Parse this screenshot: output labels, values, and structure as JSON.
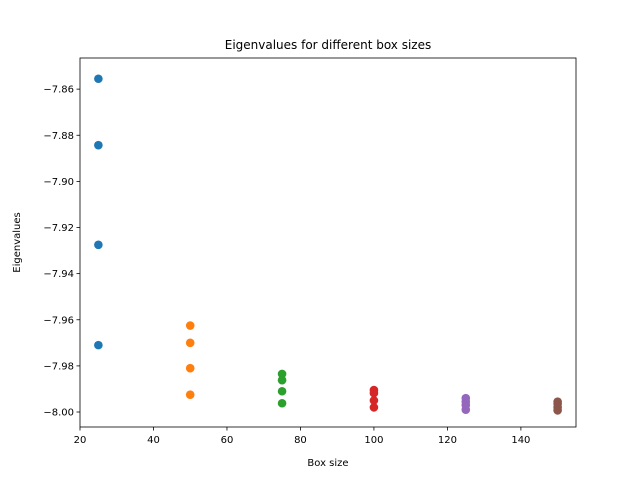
{
  "chart_data": {
    "type": "scatter",
    "title": "Eigenvalues for different box sizes",
    "xlabel": "Box size",
    "ylabel": "Eigenvalues",
    "xlim": [
      20,
      155
    ],
    "ylim": [
      -8.0065,
      -7.8465
    ],
    "xticks": [
      20,
      40,
      60,
      80,
      100,
      120,
      140
    ],
    "yticks": [
      -8.0,
      -7.98,
      -7.96,
      -7.94,
      -7.92,
      -7.9,
      -7.88,
      -7.86
    ],
    "ytick_labels": [
      "−8.00",
      "−7.98",
      "−7.96",
      "−7.94",
      "−7.92",
      "−7.90",
      "−7.88",
      "−7.86"
    ],
    "grid": false,
    "series": [
      {
        "x": 25,
        "values": [
          -7.8555,
          -7.8843,
          -7.9275,
          -7.971
        ],
        "color": "#1f77b4"
      },
      {
        "x": 50,
        "values": [
          -7.9625,
          -7.97,
          -7.981,
          -7.9925
        ],
        "color": "#ff7f0e"
      },
      {
        "x": 75,
        "values": [
          -7.9835,
          -7.9862,
          -7.991,
          -7.9962
        ],
        "color": "#2ca02c"
      },
      {
        "x": 100,
        "values": [
          -7.9905,
          -7.9918,
          -7.995,
          -7.998
        ],
        "color": "#d62728"
      },
      {
        "x": 125,
        "values": [
          -7.994,
          -7.9955,
          -7.997,
          -7.999
        ],
        "color": "#9467bd"
      },
      {
        "x": 150,
        "values": [
          -7.9955,
          -7.9965,
          -7.998,
          -7.9993
        ],
        "color": "#8c564b"
      }
    ]
  }
}
